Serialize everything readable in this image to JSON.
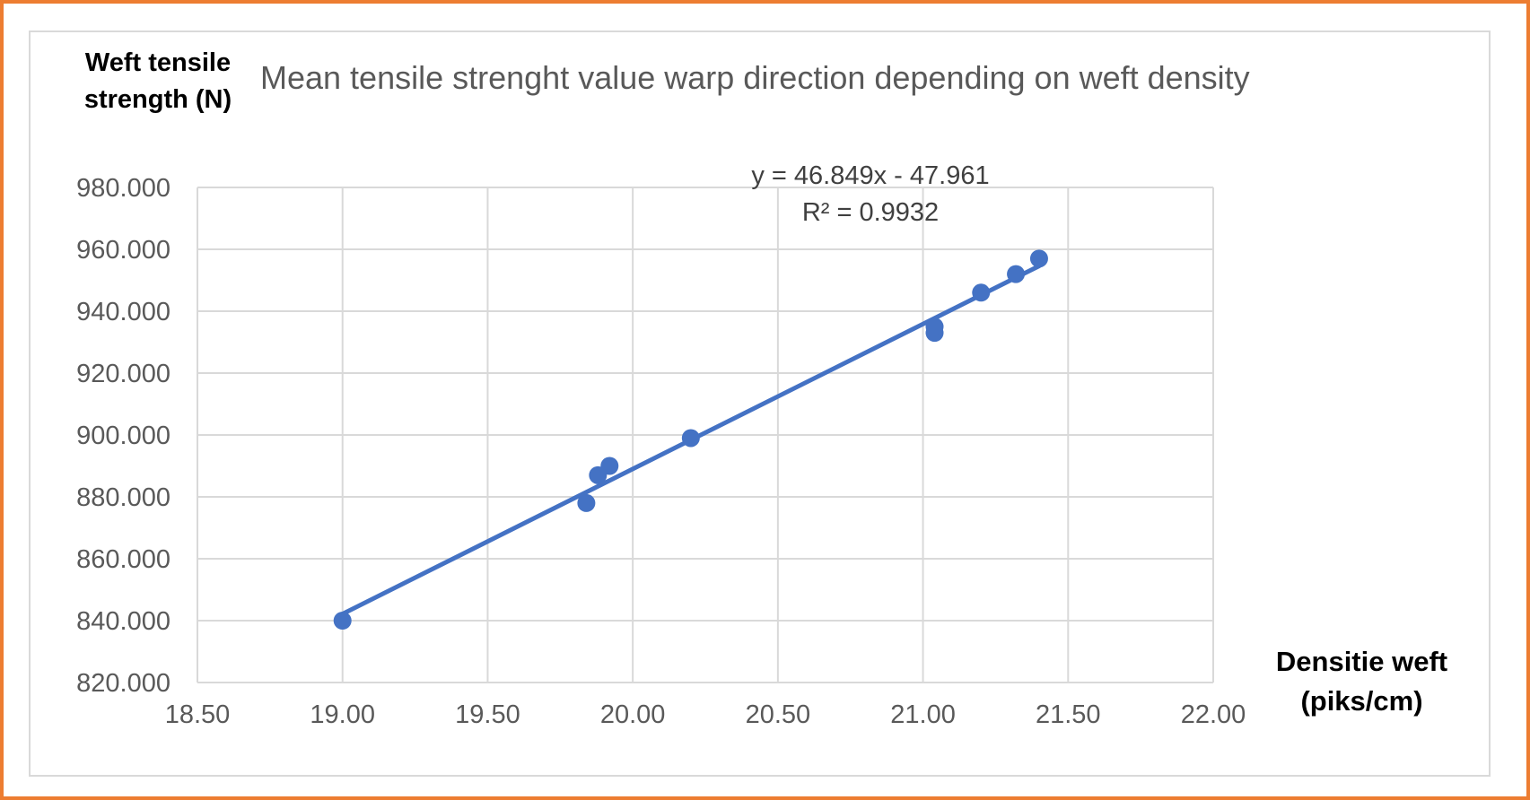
{
  "chart_data": {
    "type": "scatter",
    "title": "Mean tensile strenght value warp direction depending on weft density",
    "ylabel": "Weft tensile\nstrength (N)",
    "xlabel": "Densitie weft\n(piks/cm)",
    "xlim": [
      18.5,
      22.0
    ],
    "ylim": [
      820,
      980
    ],
    "xticks": [
      "18.50",
      "19.00",
      "19.50",
      "20.00",
      "20.50",
      "21.00",
      "21.50",
      "22.00"
    ],
    "yticks": [
      "820.000",
      "840.000",
      "860.000",
      "880.000",
      "900.000",
      "920.000",
      "940.000",
      "960.000",
      "980.000"
    ],
    "grid": true,
    "marker_color": "#4472C4",
    "trendline_color": "#4472C4",
    "series": [
      {
        "points": [
          {
            "x": 19.0,
            "y": 840
          },
          {
            "x": 19.84,
            "y": 878
          },
          {
            "x": 19.88,
            "y": 887
          },
          {
            "x": 19.92,
            "y": 890
          },
          {
            "x": 20.2,
            "y": 899
          },
          {
            "x": 21.04,
            "y": 933
          },
          {
            "x": 21.04,
            "y": 935
          },
          {
            "x": 21.2,
            "y": 946
          },
          {
            "x": 21.32,
            "y": 952
          },
          {
            "x": 21.4,
            "y": 957
          }
        ]
      }
    ],
    "trendline": {
      "x_range": [
        19.0,
        21.4
      ],
      "slope": 46.849,
      "intercept": -47.961,
      "equation": "y = 46.849x - 47.961\nR² = 0.9932"
    }
  }
}
